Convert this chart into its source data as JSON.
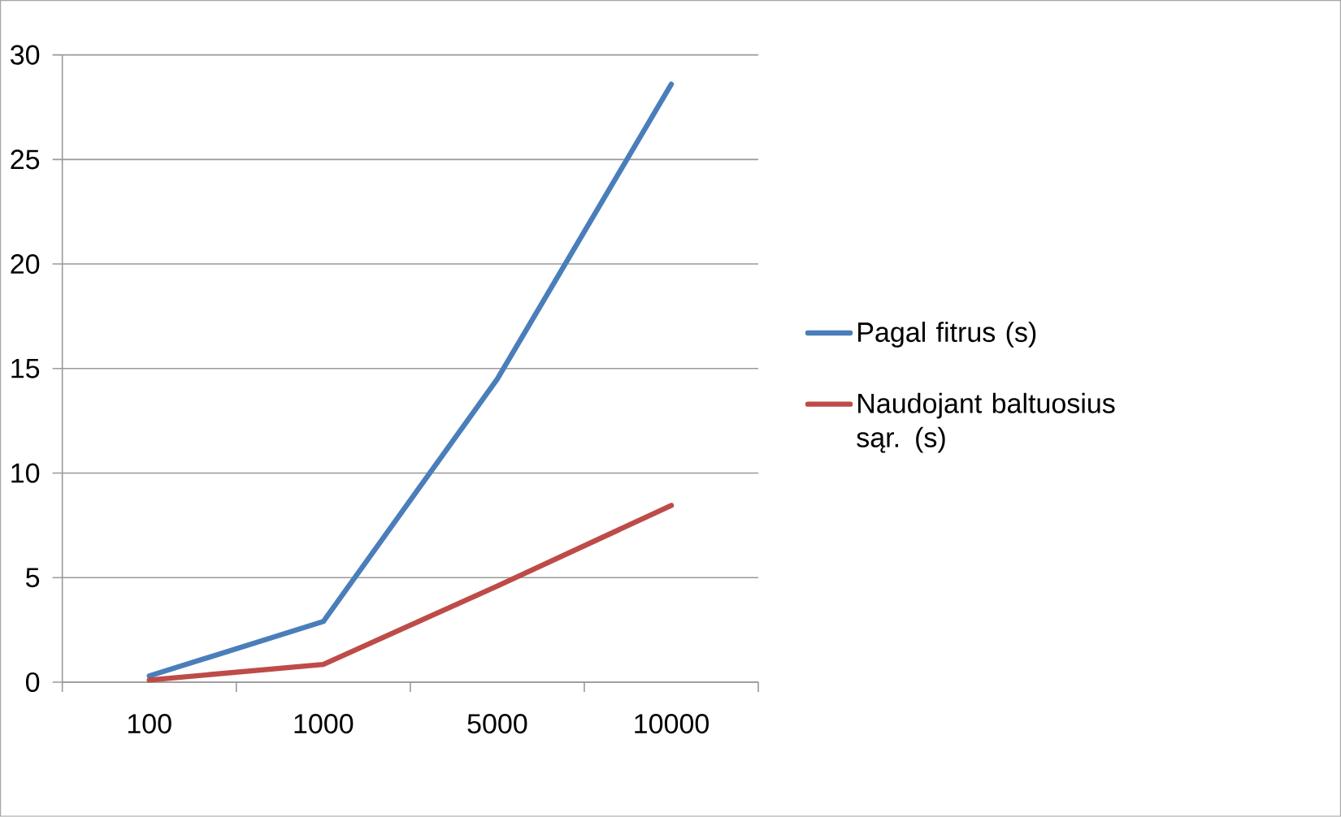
{
  "chart_data": {
    "type": "line",
    "categories": [
      "100",
      "1000",
      "5000",
      "10000"
    ],
    "series": [
      {
        "name": "Pagal fitrus (s)",
        "color": "#4a7ebb",
        "values": [
          0.3,
          2.9,
          14.5,
          28.6
        ]
      },
      {
        "name": "Naudojant baltuosius sąr. (s)",
        "color": "#be4b48",
        "values": [
          0.1,
          0.85,
          4.6,
          8.45
        ]
      }
    ],
    "ylim": [
      0,
      30
    ],
    "yticks": [
      0,
      5,
      10,
      15,
      20,
      25,
      30
    ],
    "grid": "y",
    "legend": "right",
    "marker": "none",
    "line_style": "solid"
  }
}
